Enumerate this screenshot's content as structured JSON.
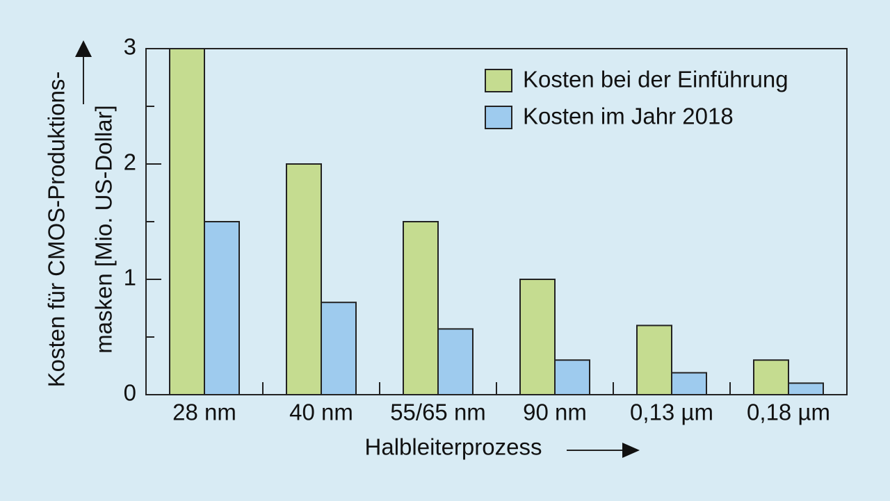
{
  "chart_data": {
    "type": "bar",
    "categories": [
      "28 nm",
      "40 nm",
      "55/65 nm",
      "90 nm",
      "0,13 µm",
      "0,18 µm"
    ],
    "series": [
      {
        "name": "Kosten bei der Einführung",
        "color": "#c5dc90",
        "values": [
          3,
          2,
          1.5,
          1,
          0.6,
          0.3
        ]
      },
      {
        "name": "Kosten im Jahr 2018",
        "color": "#9ecbee",
        "values": [
          1.5,
          0.8,
          0.57,
          0.3,
          0.19,
          0.1
        ]
      }
    ],
    "ylabel": [
      "Kosten für CMOS-Produktions-",
      "masken [Mio. US-Dollar]"
    ],
    "xlabel": "Halbleiterprozess",
    "ylim": [
      0,
      3
    ],
    "yticks": [
      0,
      1,
      2,
      3
    ],
    "minor_yticks": [
      0.5,
      1.5,
      2.5
    ],
    "legend": "upper right"
  }
}
